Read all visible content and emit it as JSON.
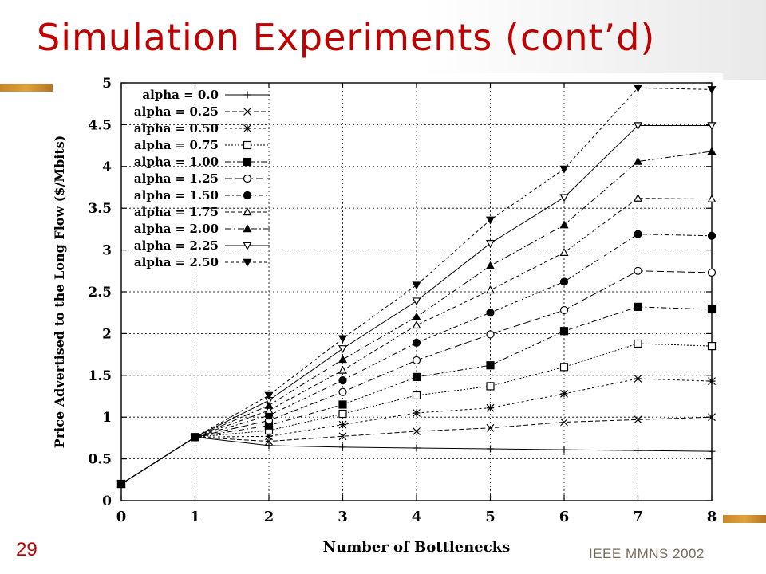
{
  "slide": {
    "title": "Simulation Experiments (cont’d)",
    "number": "29",
    "footer": "IEEE MMNS 2002",
    "accent_color": "#c00000",
    "bar_color": "#d4912f"
  },
  "chart_data": {
    "type": "line",
    "title": "",
    "xlabel": "Number of Bottlenecks",
    "ylabel": "Price Advertised to the Long Flow ($/Mbits)",
    "x": [
      0,
      1,
      2,
      3,
      4,
      5,
      6,
      7,
      8
    ],
    "xlim": [
      0,
      8
    ],
    "ylim": [
      0,
      5
    ],
    "x_ticks": [
      "0",
      "1",
      "2",
      "3",
      "4",
      "5",
      "6",
      "7",
      "8"
    ],
    "y_ticks": [
      "0",
      "0.5",
      "1",
      "1.5",
      "2",
      "2.5",
      "3",
      "3.5",
      "4",
      "4.5",
      "5"
    ],
    "grid": true,
    "legend_position": "top-left",
    "series": [
      {
        "name": "alpha = 0.0",
        "marker": "plus",
        "dash": "solid",
        "values": [
          0.2,
          0.76,
          0.66,
          0.64,
          0.63,
          0.62,
          0.61,
          0.6,
          0.59
        ]
      },
      {
        "name": "alpha = 0.25",
        "marker": "x",
        "dash": "dashed",
        "values": [
          0.2,
          0.76,
          0.71,
          0.77,
          0.83,
          0.87,
          0.94,
          0.97,
          1.0
        ]
      },
      {
        "name": "alpha = 0.50",
        "marker": "star",
        "dash": "short",
        "values": [
          0.2,
          0.76,
          0.77,
          0.91,
          1.05,
          1.11,
          1.28,
          1.46,
          1.43
        ]
      },
      {
        "name": "alpha = 0.75",
        "marker": "square-open",
        "dash": "dotted",
        "values": [
          0.2,
          0.76,
          0.84,
          1.04,
          1.26,
          1.37,
          1.6,
          1.88,
          1.85
        ]
      },
      {
        "name": "alpha = 1.00",
        "marker": "square-filled",
        "dash": "dashdot",
        "values": [
          0.2,
          0.76,
          0.9,
          1.15,
          1.48,
          1.62,
          2.03,
          2.32,
          2.29
        ]
      },
      {
        "name": "alpha = 1.25",
        "marker": "circle-open",
        "dash": "longdash",
        "values": [
          0.2,
          0.76,
          0.96,
          1.3,
          1.68,
          1.99,
          2.28,
          2.75,
          2.73
        ]
      },
      {
        "name": "alpha = 1.50",
        "marker": "circle-filled",
        "dash": "dashdot2",
        "values": [
          0.2,
          0.76,
          1.02,
          1.44,
          1.89,
          2.25,
          2.62,
          3.19,
          3.17
        ]
      },
      {
        "name": "alpha = 1.75",
        "marker": "triangle-open",
        "dash": "dashed2",
        "values": [
          0.2,
          0.76,
          1.08,
          1.56,
          2.1,
          2.52,
          2.97,
          3.62,
          3.61
        ]
      },
      {
        "name": "alpha = 2.00",
        "marker": "triangle-filled",
        "dash": "dashdot3",
        "values": [
          0.2,
          0.76,
          1.14,
          1.69,
          2.2,
          2.81,
          3.3,
          4.06,
          4.18
        ]
      },
      {
        "name": "alpha = 2.25",
        "marker": "tridown-open",
        "dash": "solid",
        "values": [
          0.2,
          0.76,
          1.2,
          1.82,
          2.39,
          3.08,
          3.63,
          4.49,
          4.49
        ]
      },
      {
        "name": "alpha = 2.50",
        "marker": "tridown-filled",
        "dash": "dashed3",
        "values": [
          0.2,
          0.76,
          1.26,
          1.94,
          2.58,
          3.36,
          3.97,
          4.94,
          4.92
        ]
      }
    ]
  }
}
